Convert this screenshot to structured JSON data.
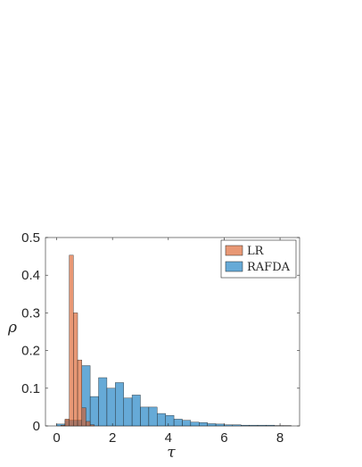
{
  "chart_data": {
    "type": "bar",
    "title": "",
    "xlabel": "τ",
    "ylabel": "ρ",
    "xlim": [
      -0.4,
      8.7
    ],
    "ylim": [
      0,
      0.5
    ],
    "x_ticks": [
      0,
      2,
      4,
      6,
      8
    ],
    "y_ticks": [
      0,
      0.1,
      0.2,
      0.3,
      0.4,
      0.5
    ],
    "grid": false,
    "legend_position": "top-right",
    "series": [
      {
        "name": "RAFDA",
        "color": "#0072BD",
        "bin_width": 0.3,
        "bin_start": 0.0,
        "values": [
          0.005,
          0.015,
          0.015,
          0.16,
          0.078,
          0.128,
          0.1,
          0.115,
          0.074,
          0.082,
          0.05,
          0.05,
          0.033,
          0.028,
          0.018,
          0.015,
          0.01,
          0.009,
          0.006,
          0.005,
          0.003,
          0.003,
          0.002,
          0.002,
          0.002,
          0.002,
          0.001,
          0.001
        ]
      },
      {
        "name": "LR",
        "color": "#D95319",
        "bin_width": 0.15,
        "bin_start": 0.15,
        "values": [
          0.002,
          0.018,
          0.453,
          0.3,
          0.175,
          0.048,
          0.012,
          0.003
        ]
      }
    ],
    "legend_order": [
      "LR",
      "RAFDA"
    ]
  }
}
